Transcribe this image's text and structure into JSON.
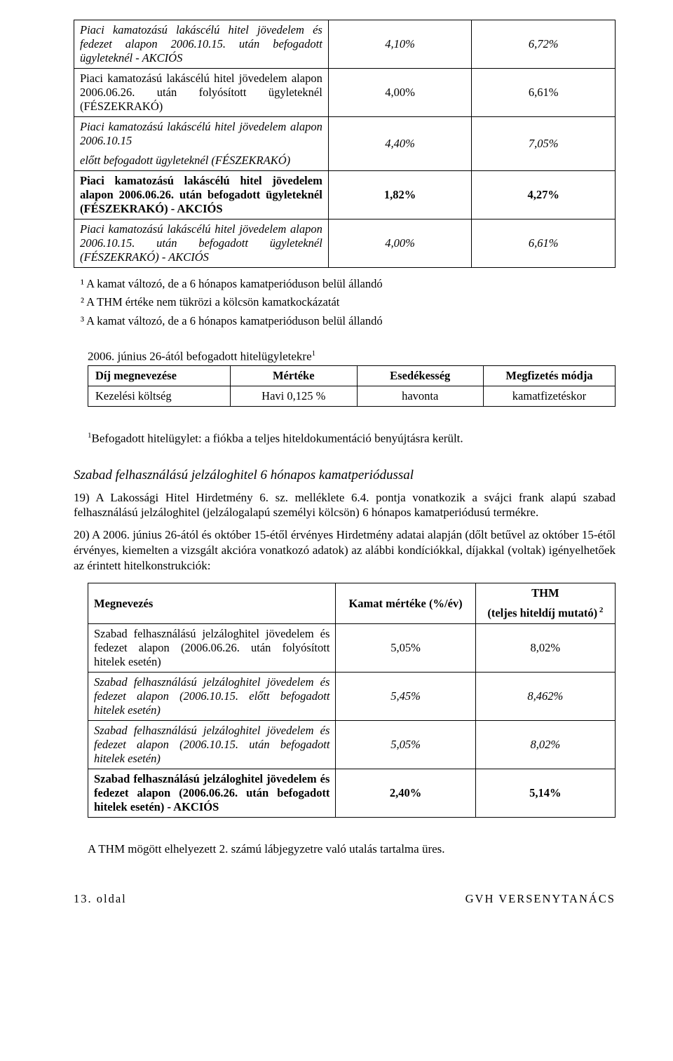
{
  "table1": {
    "rows": [
      {
        "name": "Piaci kamatozású lakáscélú hitel jövedelem és fedezet alapon 2006.10.15. után befogadott ügyleteknél - AKCIÓS",
        "v1": "4,10%",
        "v2": "6,72%",
        "style": "italic"
      },
      {
        "name": "Piaci kamatozású lakáscélú hitel jövedelem alapon 2006.06.26. után folyósított ügyleteknél (FÉSZEKRAKÓ)",
        "v1": "4,00%",
        "v2": "6,61%",
        "style": "normal"
      },
      {
        "name": "Piaci kamatozású lakáscélú hitel jövedelem alapon 2006.10.15\nelőtt befogadott ügyleteknél (FÉSZEKRAKÓ)",
        "v1": "4,40%",
        "v2": "7,05%",
        "style": "italic"
      },
      {
        "name": "Piaci kamatozású lakáscélú hitel jövedelem alapon 2006.06.26. után befogadott ügyleteknél (FÉSZEKRAKÓ) - AKCIÓS",
        "v1": "1,82%",
        "v2": "4,27%",
        "style": "bold"
      },
      {
        "name": "Piaci kamatozású lakáscélú hitel jövedelem alapon 2006.10.15. után befogadott ügyleteknél (FÉSZEKRAKÓ) - AKCIÓS",
        "v1": "4,00%",
        "v2": "6,61%",
        "style": "italic"
      }
    ]
  },
  "notes": {
    "n1": "¹ A kamat változó, de a 6 hónapos kamatperióduson belül állandó",
    "n2": "² A THM értéke nem tükrözi a kölcsön kamatkockázatát",
    "n3": "³ A kamat változó, de a 6 hónapos kamatperióduson belül állandó"
  },
  "fees": {
    "caption_pre": "2006. június 26-ától befogadott hitelügyletekre",
    "caption_sup": "1",
    "headers": [
      "Díj megnevezése",
      "Mértéke",
      "Esedékesség",
      "Megfizetés módja"
    ],
    "row": [
      "Kezelési költség",
      "Havi 0,125 %",
      "havonta",
      "kamatfizetéskor"
    ]
  },
  "footnote1_sup": "1",
  "footnote1": "Befogadott hitelügylet: a fiókba a teljes hiteldokumentáció benyújtásra került.",
  "heading2": "Szabad felhasználású jelzáloghitel 6 hónapos kamatperiódussal",
  "para19": "19) A Lakossági Hitel Hirdetmény 6. sz. melléklete 6.4. pontja vonatkozik a svájci frank alapú szabad felhasználású jelzáloghitel (jelzálogalapú személyi kölcsön) 6 hónapos kamatperiódusú termékre.",
  "para20": "20) A 2006. június 26-ától és október 15-étől érvényes Hirdetmény adatai alapján (dőlt betűvel az október 15-étől érvényes, kiemelten a vizsgált akcióra vonatkozó adatok) az alábbi kondíciókkal, díjakkal (voltak) igényelhetőek az érintett hitelkonstrukciók:",
  "table2": {
    "h1": "Megnevezés",
    "h2": "Kamat mértéke (%/év)",
    "h3a": "THM",
    "h3b_pre": "(teljes hiteldíj mutató)",
    "h3b_sup": " 2",
    "rows": [
      {
        "name": "Szabad felhasználású jelzáloghitel jövedelem és fedezet alapon (2006.06.26. után folyósított hitelek esetén)",
        "v1": "5,05%",
        "v2": "8,02%",
        "style": "normal"
      },
      {
        "name": "Szabad felhasználású jelzáloghitel jövedelem és fedezet alapon (2006.10.15. előtt befogadott hitelek esetén)",
        "v1": "5,45%",
        "v2": "8,462%",
        "style": "italic"
      },
      {
        "name": "Szabad felhasználású jelzáloghitel jövedelem és fedezet alapon (2006.10.15. után befogadott hitelek esetén)",
        "v1": "5,05%",
        "v2": "8,02%",
        "style": "italic"
      },
      {
        "name": "Szabad felhasználású jelzáloghitel jövedelem és fedezet alapon (2006.06.26. után befogadott hitelek esetén) - AKCIÓS",
        "v1": "2,40%",
        "v2": "5,14%",
        "style": "bold"
      }
    ]
  },
  "closing": "A THM mögött elhelyezett 2. számú lábjegyzetre való utalás tartalma üres.",
  "footer_left": "13. oldal",
  "footer_right": "GVH VERSENYTANÁCS"
}
